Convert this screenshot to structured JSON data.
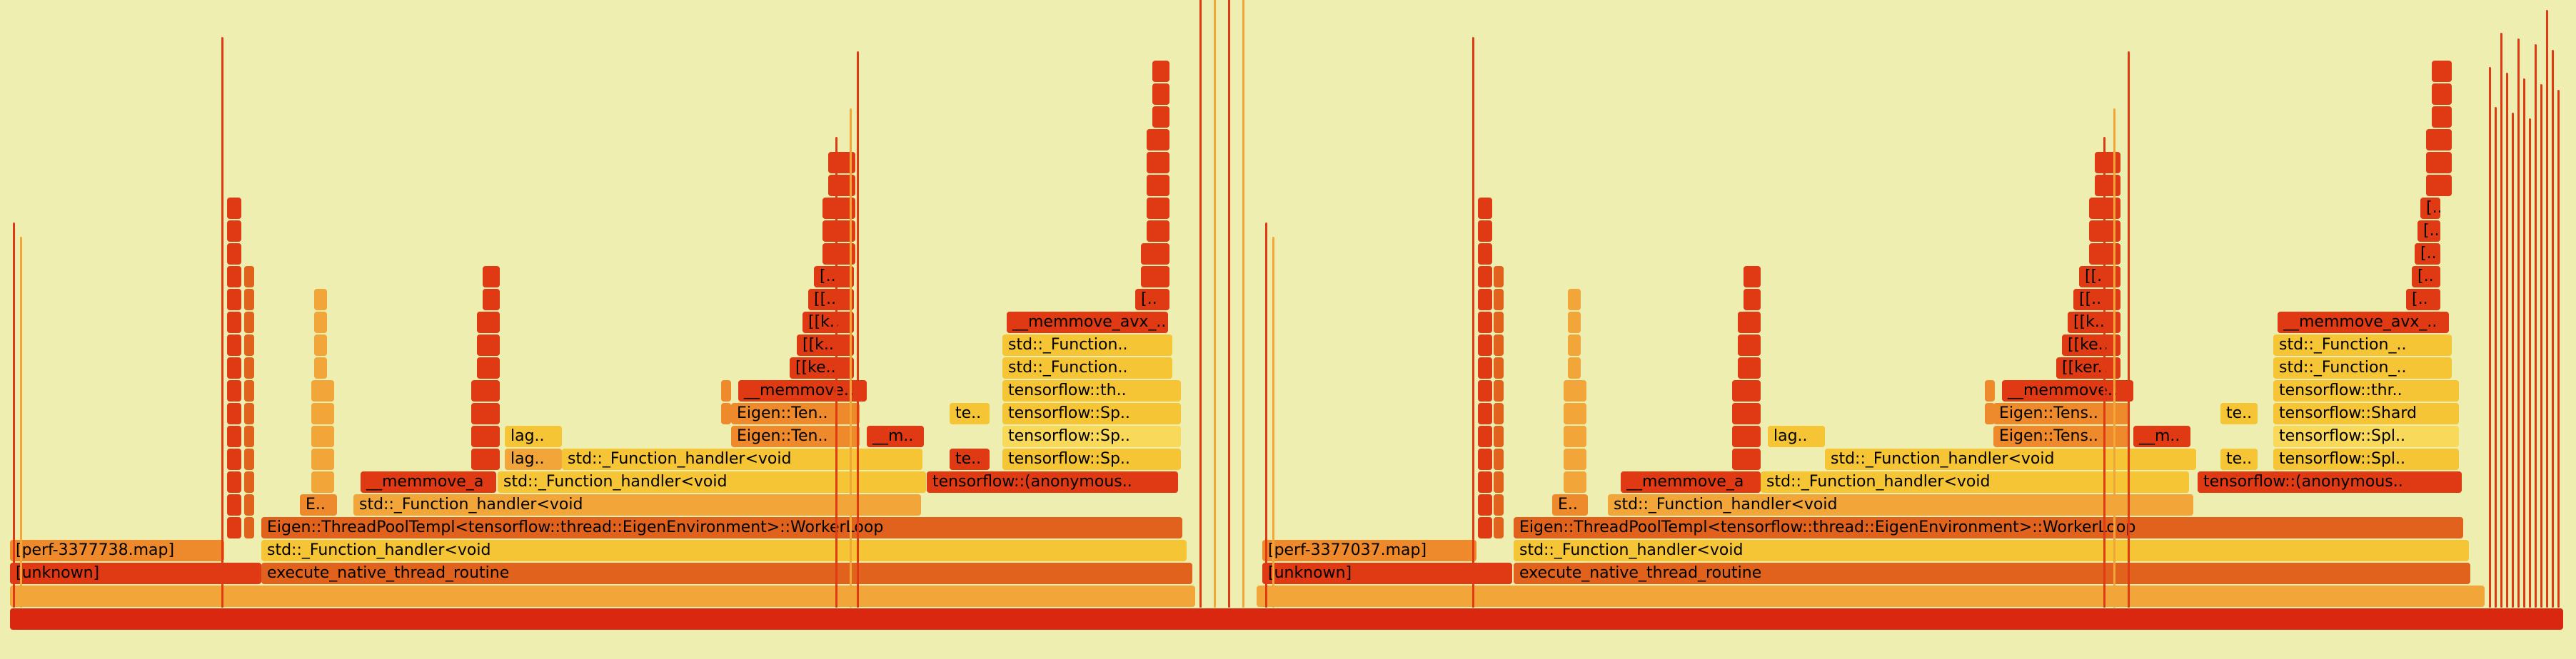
{
  "labels": {
    "root": "",
    "unknown_l": "[unknown]",
    "perf_map_l": "[perf-3377738.map]",
    "exec_native_l": "execute_native_thread_routine",
    "fn_handler_l": "std::_Function_handler<void",
    "threadpool_l": "Eigen::ThreadPoolTempl<tensorflow::thread::EigenEnvironment>::WorkerLoop",
    "e_l": "E..",
    "fn_handler_l2": "std::_Function_handler<void",
    "memmove_a_l": "__memmove_a",
    "fn_handler_l3": "std::_Function_handler<void",
    "lag1_l": "lag..",
    "lag2_l": "lag..",
    "fn_handler_l4": "std::_Function_handler<void",
    "eigen_ten1_l": "Eigen::Ten..",
    "eigen_ten2_l": "Eigen::Ten..",
    "m_l": "__m..",
    "memmove_l": "__memmove..",
    "ke_l": "[[ke..",
    "k1_l": "[[k..",
    "k2_l": "[[k..",
    "bb_l": "[[..",
    "b_l": "[..",
    "te1_l": "te..",
    "te2_l": "te..",
    "tf_anon_l": "tensorflow::(anonymous..",
    "tf_sp1_l": "tensorflow::Sp..",
    "tf_sp2_l": "tensorflow::Sp..",
    "tf_sp3_l": "tensorflow::Sp..",
    "tf_th_l": "tensorflow::th..",
    "fn_handler_l5": "std::_Function..",
    "fn_handler_l6": "std::_Function..",
    "memmove_avx_l": "__memmove_avx_..",
    "dot_l": "[..",
    "unknown_r": "[unknown]",
    "perf_map_r": "[perf-3377037.map]",
    "exec_native_r": "execute_native_thread_routine",
    "fn_handler_r": "std::_Function_handler<void",
    "threadpool_r": "Eigen::ThreadPoolTempl<tensorflow::thread::EigenEnvironment>::WorkerLoop",
    "e_r": "E..",
    "fn_handler_r2": "std::_Function_handler<void",
    "memmove_a_r": "__memmove_a",
    "fn_handler_r3": "std::_Function_handler<void",
    "lag1_r": "lag..",
    "fn_handler_r4": "std::_Function_handler<void",
    "eigen_tens1_r": "Eigen::Tens..",
    "eigen_tens2_r": "Eigen::Tens..",
    "m_r": "__m..",
    "memmove_r": "__memmove..",
    "ker_r": "[[ker..",
    "ke_r": "[[ke..",
    "k_r": "[[k..",
    "bb1_r": "[[..",
    "bb2_r": "[[..",
    "te1_r": "te..",
    "te2_r": "te..",
    "tf_anon_r": "tensorflow::(anonymous..",
    "tf_spl1_r": "tensorflow::Spl..",
    "tf_spl2_r": "tensorflow::Spl..",
    "tf_shard_r": "tensorflow::Shard",
    "tf_thr_r": "tensorflow::thr..",
    "fn_handler_r5": "std::_Function_..",
    "fn_handler_r6": "std::_Function_..",
    "memmove_avx_r": "__memmove_avx_..",
    "dot1_r": "[..",
    "dot2_r": "[..",
    "dot3_r": "[..",
    "dot4_r": "[..",
    "dot5_r": "[.."
  },
  "colors": {
    "background": "#eeeeb0",
    "deep_red": "#d9280f",
    "red": "#e03a14",
    "orange_dark": "#e0621c",
    "orange": "#ee8a2c",
    "amber": "#f2a63a",
    "yellow": "#f6c535",
    "light_yellow": "#f9d95a"
  }
}
